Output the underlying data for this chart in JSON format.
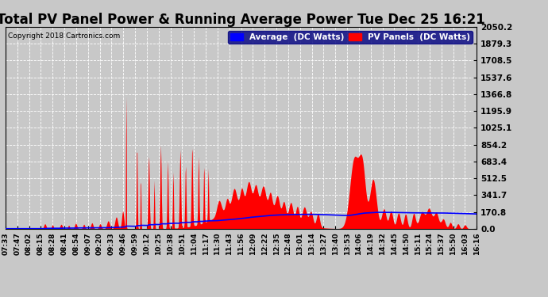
{
  "title": "Total PV Panel Power & Running Average Power Tue Dec 25 16:21",
  "copyright": "Copyright 2018 Cartronics.com",
  "legend_avg": "Average  (DC Watts)",
  "legend_pv": "PV Panels  (DC Watts)",
  "ylabel_ticks": [
    0.0,
    170.8,
    341.7,
    512.5,
    683.4,
    854.2,
    1025.1,
    1195.9,
    1366.8,
    1537.6,
    1708.5,
    1879.3,
    2050.2
  ],
  "ylim": [
    0.0,
    2050.2
  ],
  "bg_color": "#c8c8c8",
  "grid_color": "#aaaaaa",
  "pv_color": "#ff0000",
  "avg_color": "#0000ff",
  "title_fontsize": 12,
  "tick_fontsize": 7.5,
  "xtick_fontsize": 6.5,
  "x_labels": [
    "07:33",
    "07:47",
    "08:02",
    "08:15",
    "08:28",
    "08:41",
    "08:54",
    "09:07",
    "09:20",
    "09:33",
    "09:46",
    "09:59",
    "10:12",
    "10:25",
    "10:38",
    "10:51",
    "11:04",
    "11:17",
    "11:30",
    "11:43",
    "11:56",
    "12:09",
    "12:22",
    "12:35",
    "12:48",
    "13:01",
    "13:14",
    "13:27",
    "13:40",
    "13:53",
    "14:06",
    "14:19",
    "14:32",
    "14:45",
    "14:50",
    "15:11",
    "15:24",
    "15:37",
    "15:50",
    "16:03",
    "16:16"
  ],
  "legend_bg": "#000080",
  "legend_text_color": "#ffffff"
}
